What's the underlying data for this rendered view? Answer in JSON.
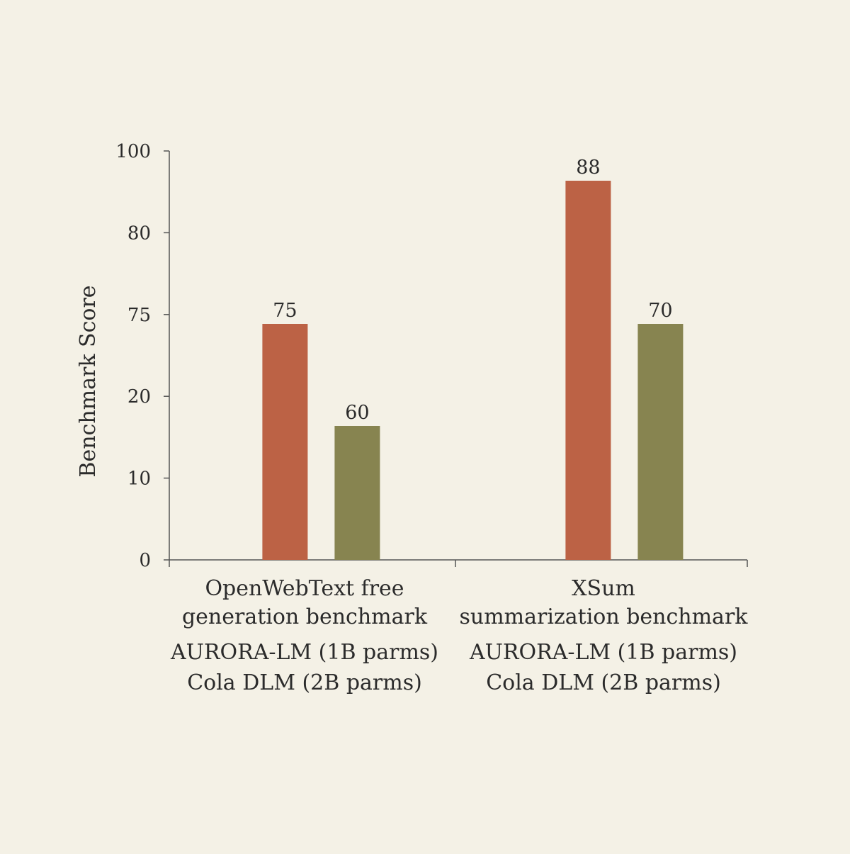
{
  "chart_data": {
    "type": "bar",
    "title": "",
    "xlabel": "",
    "ylabel": "Benchmark Score",
    "y_ticks": [
      "100",
      "80",
      "75",
      "20",
      "10",
      "0"
    ],
    "categories": [
      {
        "lines": [
          "OpenWebText free",
          "generation benchmark"
        ]
      },
      {
        "lines": [
          "XSum",
          "summarization benchmark"
        ]
      }
    ],
    "series": [
      {
        "name": "AURORA-LM (1B parms)",
        "color": "#bc6245",
        "values": [
          75,
          88
        ]
      },
      {
        "name": "Cola DLM (2B parms)",
        "color": "#878450",
        "values": [
          60,
          70
        ]
      }
    ],
    "data_labels": [
      [
        "75",
        "88"
      ],
      [
        "60",
        "70"
      ]
    ],
    "legend_placement": "below each category label",
    "grid": false,
    "axis_color": "#555555"
  }
}
